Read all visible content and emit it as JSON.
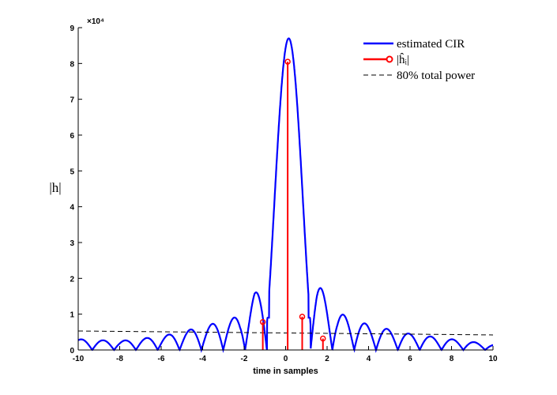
{
  "chart_data": {
    "type": "line",
    "xlabel": "time in samples",
    "ylabel": "|h|",
    "exponent_label": "×10⁴",
    "xlim": [
      -10,
      10
    ],
    "ylim": [
      0,
      90000
    ],
    "xticks": [
      -10,
      -8,
      -6,
      -4,
      -2,
      0,
      2,
      4,
      6,
      8,
      10
    ],
    "yticks": [
      0,
      10000,
      20000,
      30000,
      40000,
      50000,
      60000,
      70000,
      80000,
      90000
    ],
    "ytick_labels": [
      "0",
      "1",
      "2",
      "3",
      "4",
      "5",
      "6",
      "7",
      "8",
      "9"
    ],
    "grid": false,
    "legend_position": "top-right",
    "series": [
      {
        "name": "estimated CIR",
        "style": "line",
        "color": "#0000ff",
        "peak": {
          "x": 0.15,
          "y": 87000
        },
        "envelope_points": [
          {
            "x": -10,
            "y": 3000
          },
          {
            "x": -8,
            "y": 2500
          },
          {
            "x": -6,
            "y": 3800
          },
          {
            "x": -4,
            "y": 6500
          },
          {
            "x": -2.2,
            "y": 9500
          },
          {
            "x": -1.5,
            "y": 16000
          },
          {
            "x": 1.5,
            "y": 19000
          },
          {
            "x": 2.5,
            "y": 10500
          },
          {
            "x": 4,
            "y": 7000
          },
          {
            "x": 6,
            "y": 4500
          },
          {
            "x": 8,
            "y": 3000
          },
          {
            "x": 10,
            "y": 1500
          }
        ]
      },
      {
        "name": "|ĥᵢ|",
        "style": "stem",
        "color": "#ff0000",
        "x": [
          -1.1,
          0.1,
          0.8,
          1.8
        ],
        "y": [
          7800,
          80500,
          9300,
          3200
        ]
      },
      {
        "name": "80% total power",
        "style": "dashed",
        "color": "#000000",
        "x": [
          -10,
          10
        ],
        "y": [
          5300,
          4200
        ]
      }
    ]
  }
}
